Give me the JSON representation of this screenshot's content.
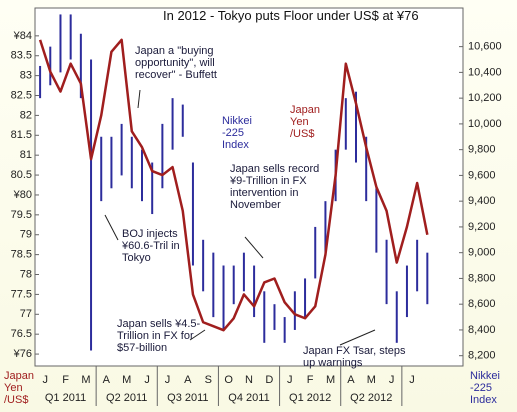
{
  "chart_data": {
    "type": "line",
    "title": "In 2012 - Tokyo puts Floor under US$ at ¥76",
    "ylabel": "Japan Yen /US$",
    "y2label": "Nikkei -225 Index",
    "annotations": [
      "Japan a \"buying opportunity\", will recover\" - Buffett",
      "Japan sells record ¥9-Trillion in FX intervention in November",
      "BOJ injects ¥60.6-Tril in Tokyo",
      "Japan sells ¥4.5-Trillion in FX for $57-billion",
      "Japan FX Tsar, steps up warnings"
    ],
    "categories": [
      "J",
      null,
      "F",
      null,
      "M",
      null,
      "A",
      null,
      "M",
      null,
      "J",
      null,
      "J",
      null,
      "A",
      null,
      "S",
      null,
      "O",
      null,
      "N",
      null,
      "D",
      null,
      "J",
      null,
      "F",
      null,
      "M",
      null,
      "A",
      null,
      "M",
      null,
      "J",
      null,
      "J",
      null,
      null,
      null,
      null,
      null
    ],
    "quarters": [
      "Q1 2011",
      "Q2 2011",
      "Q3 2011",
      "Q4 2011",
      "Q1 2012",
      "Q2 2012"
    ],
    "series": [
      {
        "name": "Japan Yen /US$",
        "color": "#a01e1e",
        "values": [
          83.9,
          83.1,
          82.6,
          83.3,
          82.8,
          80.9,
          82.0,
          83.6,
          83.9,
          81.6,
          81.2,
          80.6,
          80.5,
          80.7,
          79.6,
          77.5,
          76.8,
          76.7,
          76.6,
          76.9,
          77.5,
          77.2,
          77.8,
          77.9,
          77.3,
          77.0,
          76.9,
          77.2,
          78.5,
          80.5,
          83.3,
          82.3,
          81.2,
          80.2,
          79.6,
          78.3,
          79.2,
          80.3,
          79.0,
          null,
          null,
          null
        ]
      },
      {
        "name": "Nikkei -225 Index",
        "color": "#2c2c9c",
        "axis": "y2",
        "low": [
          10200,
          10300,
          10400,
          10500,
          10200,
          8240,
          9400,
          9500,
          9600,
          9500,
          9400,
          9300,
          9500,
          9800,
          9900,
          8900,
          8700,
          8500,
          8400,
          8600,
          8700,
          8500,
          8300,
          8400,
          8300,
          8400,
          8500,
          8800,
          9000,
          9400,
          9800,
          9700,
          9400,
          9000,
          8600,
          8300,
          8500,
          8700,
          8600,
          null,
          null,
          null
        ],
        "high": [
          10450,
          10600,
          10850,
          10850,
          10700,
          10500,
          9900,
          9900,
          10000,
          9900,
          9800,
          9700,
          10000,
          10200,
          10150,
          9700,
          9100,
          9000,
          8900,
          8900,
          9000,
          8900,
          8700,
          8600,
          8500,
          8700,
          8800,
          9200,
          9400,
          9800,
          10200,
          10250,
          9900,
          9500,
          9100,
          8700,
          8900,
          9100,
          9000,
          null,
          null,
          null
        ]
      }
    ],
    "ylim": [
      75.7,
      84.7
    ],
    "yticks": [
      {
        "value": 76,
        "label": "¥76"
      },
      76.5,
      77,
      77.5,
      78,
      78.5,
      79,
      79.5,
      {
        "value": 80,
        "label": "¥80"
      },
      80.5,
      81,
      81.5,
      82,
      82.5,
      83,
      83.5,
      {
        "value": 84,
        "label": "¥84"
      }
    ],
    "y2lim": [
      8120,
      10900
    ],
    "y2ticks": [
      {
        "value": 8200,
        "label": "8,200"
      },
      {
        "value": 8400,
        "label": "8,400"
      },
      {
        "value": 8600,
        "label": "8,600"
      },
      {
        "value": 8800,
        "label": "8,800"
      },
      {
        "value": 9000,
        "label": "9,000"
      },
      {
        "value": 9200,
        "label": "9,200"
      },
      {
        "value": 9400,
        "label": "9,400"
      },
      {
        "value": 9600,
        "label": "9,600"
      },
      {
        "value": 9800,
        "label": "9,800"
      },
      {
        "value": 10000,
        "label": "10,000"
      },
      {
        "value": 10200,
        "label": "10,200"
      },
      {
        "value": 10400,
        "label": "10,400"
      },
      {
        "value": 10600,
        "label": "10,600"
      }
    ]
  }
}
